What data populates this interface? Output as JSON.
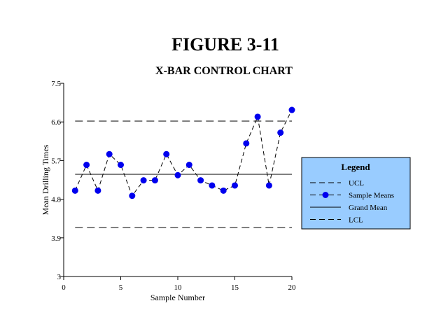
{
  "figure_title": "FIGURE 3-11",
  "chart_data": {
    "type": "line",
    "title": "X-BAR CONTROL CHART",
    "xlabel": "Sample Number",
    "ylabel": "Mean Drilling Times",
    "xlim": [
      0,
      20
    ],
    "ylim": [
      3,
      7.5
    ],
    "x_ticks": [
      0,
      5,
      10,
      15,
      20
    ],
    "x_tick_labels": [
      "0",
      "5",
      "10",
      "15",
      "20"
    ],
    "y_ticks": [
      3,
      3.9,
      4.8,
      5.7,
      6.6,
      7.5
    ],
    "y_tick_labels": [
      "3",
      "3.9",
      "4.8",
      "5.7",
      "6.6",
      "7.5"
    ],
    "grid": false,
    "legend": {
      "title": "Legend",
      "placement": "right",
      "entries": [
        "UCL",
        "Sample Means",
        "Grand Mean",
        "LCL"
      ]
    },
    "colors": {
      "marker": "#0000ee",
      "legend_bg": "#99ccff",
      "line": "#000000"
    },
    "series": [
      {
        "name": "Sample Means",
        "x": [
          1,
          2,
          3,
          4,
          5,
          6,
          7,
          8,
          9,
          10,
          11,
          12,
          13,
          14,
          15,
          16,
          17,
          18,
          19,
          20
        ],
        "values": [
          5.0,
          5.6,
          5.0,
          5.85,
          5.6,
          4.88,
          5.24,
          5.24,
          5.85,
          5.36,
          5.6,
          5.24,
          5.12,
          5.0,
          5.12,
          6.1,
          6.72,
          5.12,
          6.35,
          6.88
        ]
      },
      {
        "name": "UCL",
        "value": 6.62
      },
      {
        "name": "Grand Mean",
        "value": 5.38
      },
      {
        "name": "LCL",
        "value": 4.14
      }
    ]
  }
}
